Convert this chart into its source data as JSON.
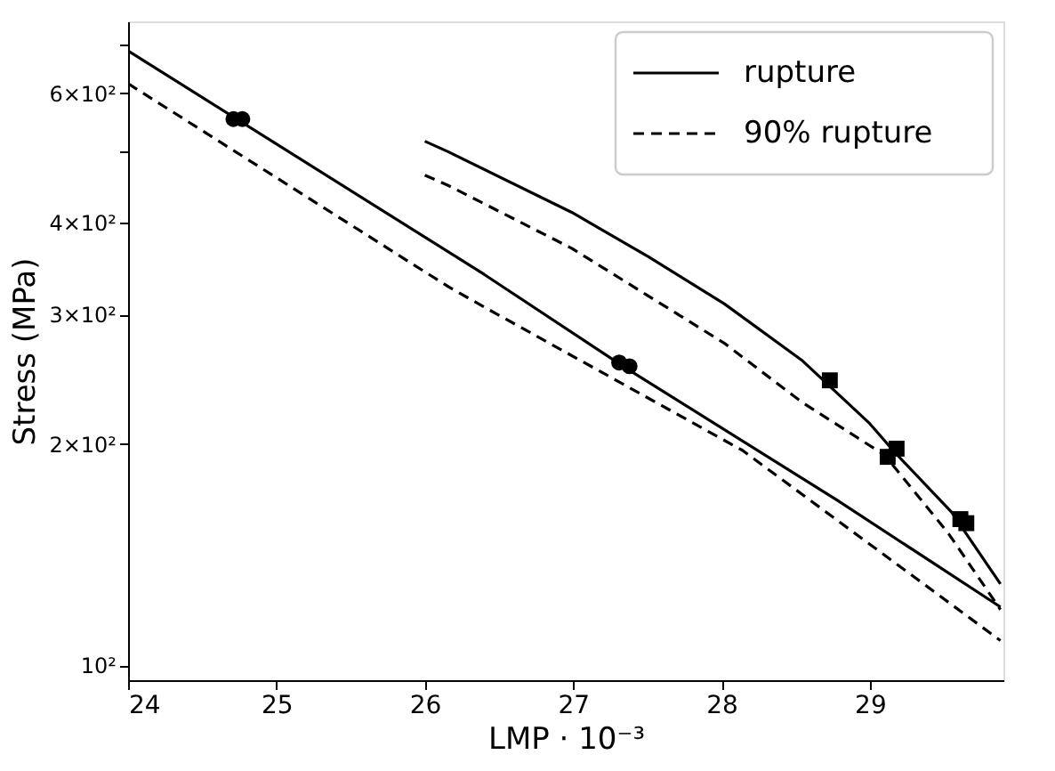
{
  "chart_data": {
    "type": "line",
    "xlabel": "LMP · 10⁻³",
    "ylabel": "Stress (MPa)",
    "log": "y",
    "grid": false,
    "legend": "top right",
    "marker": "none",
    "xlim": [
      24,
      29.9
    ],
    "xticks": [
      24,
      25,
      26,
      27,
      28,
      29
    ],
    "ylim": [
      95.4,
      751
    ],
    "yticks": [
      {
        "value": 100,
        "label": "10²"
      },
      {
        "value": 200,
        "label": "2×10²"
      },
      {
        "value": 300,
        "label": "3×10²"
      },
      {
        "value": 400,
        "label": "4×10²"
      },
      {
        "value": 500,
        "label": null
      },
      {
        "value": 600,
        "label": "6×10²"
      },
      {
        "value": 700,
        "label": null
      }
    ],
    "series": [
      {
        "name": "rupture",
        "color": "#000000",
        "line_style": "solid",
        "x": [
          24,
          26.4,
          27.35,
          28.78,
          29.88
        ],
        "values": [
          685,
          340,
          254,
          167.6,
          120
        ]
      },
      {
        "name": "90% rupture",
        "color": "#000000",
        "line_style": "dashed",
        "x": [
          24,
          26.16,
          26.4,
          28.14,
          29.88
        ],
        "values": [
          618,
          327,
          307,
          196,
          108
        ]
      },
      {
        "color": "#000000",
        "line_style": "solid",
        "x": [
          26.0,
          26.16,
          26.99,
          27.51,
          28.02,
          28.54,
          29.0,
          29.17,
          29.55,
          29.88
        ],
        "values": [
          516,
          499,
          413,
          359,
          310,
          260,
          213,
          194.5,
          161.5,
          129
        ]
      },
      {
        "color": "#000000",
        "line_style": "dashed",
        "x": [
          26.0,
          26.16,
          26.99,
          28.02,
          28.54,
          29.1,
          29.53,
          29.88
        ],
        "values": [
          464,
          449,
          369,
          274,
          228,
          193,
          151,
          119
        ]
      },
      {
        "type": "scatter",
        "marker": "circle",
        "color": "#000000",
        "x": [
          24.71,
          24.77,
          27.31,
          27.38
        ],
        "values": [
          553,
          553,
          258,
          255
        ]
      },
      {
        "type": "scatter",
        "marker": "square",
        "color": "#000000",
        "x": [
          28.73,
          29.18,
          29.12,
          29.61,
          29.65
        ],
        "values": [
          244,
          197,
          192,
          158,
          156
        ]
      }
    ]
  }
}
